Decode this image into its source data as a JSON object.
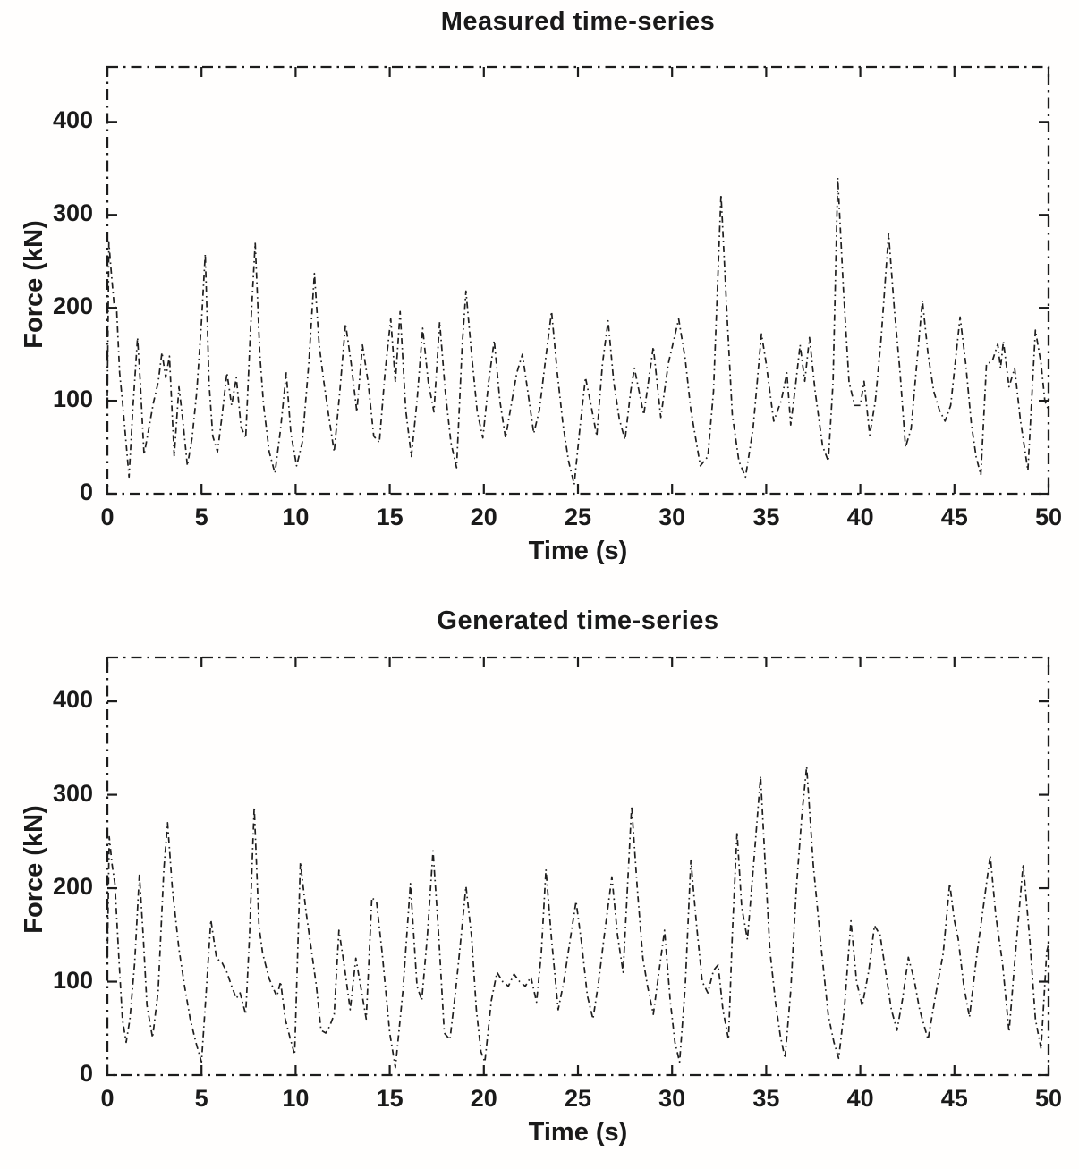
{
  "ink_color": "#1c1c1c",
  "background_color": "#ffffff",
  "chart_data": [
    {
      "type": "line",
      "id": "measured",
      "title": "Measured time-series",
      "xlabel": "Time (s)",
      "ylabel": "Force (kN)",
      "xlim": [
        0,
        50
      ],
      "ylim": [
        0,
        459
      ],
      "x_ticks": [
        "0",
        "5",
        "10",
        "15",
        "20",
        "25",
        "30",
        "35",
        "40",
        "45",
        "50"
      ],
      "y_ticks": [
        "0",
        "100",
        "200",
        "300",
        "400"
      ],
      "grid": false,
      "legend": null,
      "line": {
        "style": "dash-dot",
        "color": "#1f1f1f"
      },
      "x": [
        0,
        0.08,
        0.2,
        0.35,
        0.5,
        0.65,
        0.8,
        0.95,
        1.15,
        1.35,
        1.6,
        1.75,
        1.95,
        2.2,
        2.45,
        2.7,
        2.9,
        3.1,
        3.3,
        3.55,
        3.8,
        4.0,
        4.25,
        4.5,
        4.75,
        5.0,
        5.2,
        5.4,
        5.6,
        5.85,
        6.1,
        6.35,
        6.6,
        6.85,
        7.1,
        7.35,
        7.6,
        7.85,
        8.1,
        8.3,
        8.6,
        8.9,
        9.2,
        9.5,
        9.75,
        10.05,
        10.35,
        10.7,
        11.0,
        11.25,
        11.5,
        11.75,
        12.05,
        12.35,
        12.65,
        12.95,
        13.25,
        13.55,
        13.85,
        14.15,
        14.45,
        14.75,
        15.05,
        15.3,
        15.55,
        15.85,
        16.15,
        16.45,
        16.75,
        17.05,
        17.35,
        17.65,
        17.95,
        18.25,
        18.55,
        18.85,
        19.05,
        19.35,
        19.65,
        19.95,
        20.25,
        20.55,
        20.85,
        21.15,
        21.45,
        21.75,
        22.05,
        22.35,
        22.65,
        22.95,
        23.25,
        23.6,
        23.9,
        24.2,
        24.5,
        24.8,
        25.1,
        25.4,
        25.7,
        26.0,
        26.3,
        26.6,
        26.9,
        27.2,
        27.5,
        27.8,
        28.0,
        28.5,
        29.0,
        29.4,
        29.8,
        30.35,
        30.7,
        31.0,
        31.5,
        31.9,
        32.2,
        32.6,
        32.9,
        33.2,
        33.55,
        33.9,
        34.3,
        34.75,
        35.0,
        35.4,
        35.8,
        36.1,
        36.3,
        36.55,
        36.8,
        37.05,
        37.3,
        37.6,
        38.0,
        38.3,
        38.55,
        38.8,
        39.1,
        39.4,
        39.7,
        40.0,
        40.2,
        40.5,
        40.8,
        41.1,
        41.5,
        41.8,
        42.1,
        42.4,
        42.7,
        43.0,
        43.3,
        43.6,
        43.9,
        44.2,
        44.5,
        44.8,
        45.3,
        45.6,
        45.9,
        46.15,
        46.4,
        46.7,
        47.0,
        47.3,
        47.45,
        47.6,
        47.9,
        48.2,
        48.5,
        48.9,
        49.3,
        49.6,
        49.8,
        50
      ],
      "y": [
        105,
        270,
        240,
        205,
        196,
        130,
        100,
        65,
        18,
        90,
        168,
        120,
        42,
        70,
        98,
        120,
        152,
        125,
        148,
        40,
        115,
        80,
        30,
        60,
        110,
        185,
        258,
        120,
        62,
        45,
        85,
        130,
        95,
        125,
        72,
        60,
        175,
        270,
        150,
        95,
        45,
        22,
        70,
        130,
        65,
        30,
        55,
        140,
        237,
        160,
        120,
        85,
        45,
        110,
        183,
        140,
        88,
        160,
        120,
        62,
        55,
        130,
        188,
        120,
        196,
        90,
        40,
        100,
        178,
        120,
        88,
        185,
        110,
        55,
        28,
        160,
        218,
        150,
        88,
        60,
        120,
        165,
        100,
        60,
        95,
        130,
        150,
        108,
        65,
        90,
        140,
        196,
        130,
        75,
        35,
        10,
        70,
        125,
        95,
        62,
        140,
        186,
        120,
        80,
        58,
        110,
        135,
        85,
        158,
        82,
        140,
        188,
        145,
        90,
        30,
        40,
        110,
        322,
        200,
        85,
        35,
        18,
        70,
        172,
        140,
        78,
        100,
        130,
        74,
        115,
        160,
        121,
        168,
        110,
        51,
        35,
        120,
        340,
        220,
        120,
        95,
        95,
        121,
        63,
        100,
        165,
        280,
        200,
        133,
        50,
        70,
        140,
        208,
        150,
        110,
        90,
        78,
        95,
        190,
        140,
        75,
        40,
        20,
        140,
        142,
        161,
        135,
        164,
        115,
        135,
        80,
        25,
        176,
        140,
        100,
        90
      ]
    },
    {
      "type": "line",
      "id": "generated",
      "title": "Generated time-series",
      "xlabel": "Time (s)",
      "ylabel": "Force (kN)",
      "xlim": [
        0,
        50
      ],
      "ylim": [
        0,
        447
      ],
      "x_ticks": [
        "0",
        "5",
        "10",
        "15",
        "20",
        "25",
        "30",
        "35",
        "40",
        "45",
        "50"
      ],
      "y_ticks": [
        "0",
        "100",
        "200",
        "300",
        "400"
      ],
      "grid": false,
      "legend": null,
      "line": {
        "style": "dash-dot",
        "color": "#1f1f1f"
      },
      "x": [
        0,
        0.1,
        0.25,
        0.4,
        0.6,
        0.8,
        1.0,
        1.2,
        1.45,
        1.7,
        1.9,
        2.1,
        2.4,
        2.7,
        3.0,
        3.2,
        3.45,
        3.8,
        4.1,
        4.4,
        4.7,
        5.0,
        5.25,
        5.5,
        5.8,
        6.1,
        6.35,
        6.6,
        6.85,
        7.05,
        7.35,
        7.55,
        7.8,
        8.05,
        8.25,
        8.6,
        9.0,
        9.2,
        9.45,
        9.7,
        9.95,
        10.25,
        10.55,
        10.85,
        11.1,
        11.35,
        11.6,
        11.8,
        12.05,
        12.3,
        12.6,
        12.9,
        13.2,
        13.5,
        13.75,
        14.05,
        14.3,
        14.6,
        15.0,
        15.3,
        15.7,
        16.1,
        16.45,
        16.7,
        17.0,
        17.3,
        17.6,
        17.9,
        18.2,
        18.5,
        18.75,
        19.05,
        19.35,
        19.6,
        19.85,
        20.05,
        20.4,
        20.7,
        21.0,
        21.3,
        21.6,
        21.9,
        22.2,
        22.5,
        22.8,
        23.05,
        23.3,
        23.6,
        23.95,
        24.25,
        24.55,
        24.9,
        25.2,
        25.5,
        25.8,
        26.1,
        26.4,
        26.8,
        27.1,
        27.4,
        27.85,
        28.15,
        28.45,
        28.7,
        29.0,
        29.3,
        29.6,
        29.9,
        30.15,
        30.4,
        30.7,
        31.0,
        31.3,
        31.6,
        31.9,
        32.2,
        32.45,
        32.7,
        33.0,
        33.2,
        33.45,
        33.7,
        34.0,
        34.35,
        34.7,
        34.95,
        35.2,
        35.5,
        35.75,
        36.0,
        36.3,
        36.6,
        36.9,
        37.15,
        37.5,
        37.9,
        38.3,
        38.6,
        38.85,
        39.15,
        39.5,
        39.8,
        40.1,
        40.45,
        40.75,
        41.05,
        41.35,
        41.65,
        41.95,
        42.25,
        42.55,
        42.85,
        43.15,
        43.6,
        44.0,
        44.4,
        44.75,
        45.0,
        45.2,
        45.5,
        45.8,
        46.2,
        46.6,
        46.9,
        47.2,
        47.55,
        47.9,
        48.2,
        48.65,
        49.0,
        49.3,
        49.6,
        49.9,
        50
      ],
      "y": [
        125,
        255,
        225,
        205,
        130,
        60,
        35,
        60,
        120,
        215,
        150,
        75,
        40,
        90,
        220,
        270,
        200,
        135,
        95,
        60,
        35,
        14,
        90,
        166,
        125,
        120,
        110,
        95,
        82,
        88,
        65,
        150,
        287,
        160,
        130,
        103,
        84,
        100,
        60,
        40,
        22,
        228,
        175,
        132,
        96,
        48,
        45,
        52,
        65,
        155,
        115,
        70,
        125,
        90,
        60,
        190,
        185,
        130,
        45,
        8,
        90,
        205,
        95,
        80,
        150,
        240,
        150,
        45,
        38,
        90,
        140,
        202,
        148,
        70,
        25,
        14,
        80,
        110,
        100,
        95,
        108,
        100,
        95,
        105,
        78,
        130,
        220,
        145,
        70,
        100,
        140,
        186,
        140,
        85,
        60,
        100,
        150,
        212,
        150,
        110,
        288,
        200,
        125,
        95,
        65,
        110,
        155,
        80,
        35,
        14,
        95,
        230,
        160,
        100,
        88,
        112,
        118,
        70,
        38,
        150,
        260,
        180,
        145,
        230,
        320,
        225,
        133,
        77,
        42,
        18,
        90,
        200,
        280,
        330,
        225,
        141,
        64,
        35,
        18,
        70,
        165,
        100,
        74,
        112,
        160,
        150,
        110,
        70,
        48,
        82,
        126,
        103,
        70,
        38,
        86,
        130,
        205,
        165,
        146,
        95,
        62,
        130,
        190,
        235,
        170,
        120,
        46,
        120,
        226,
        145,
        60,
        28,
        132,
        140
      ]
    }
  ]
}
